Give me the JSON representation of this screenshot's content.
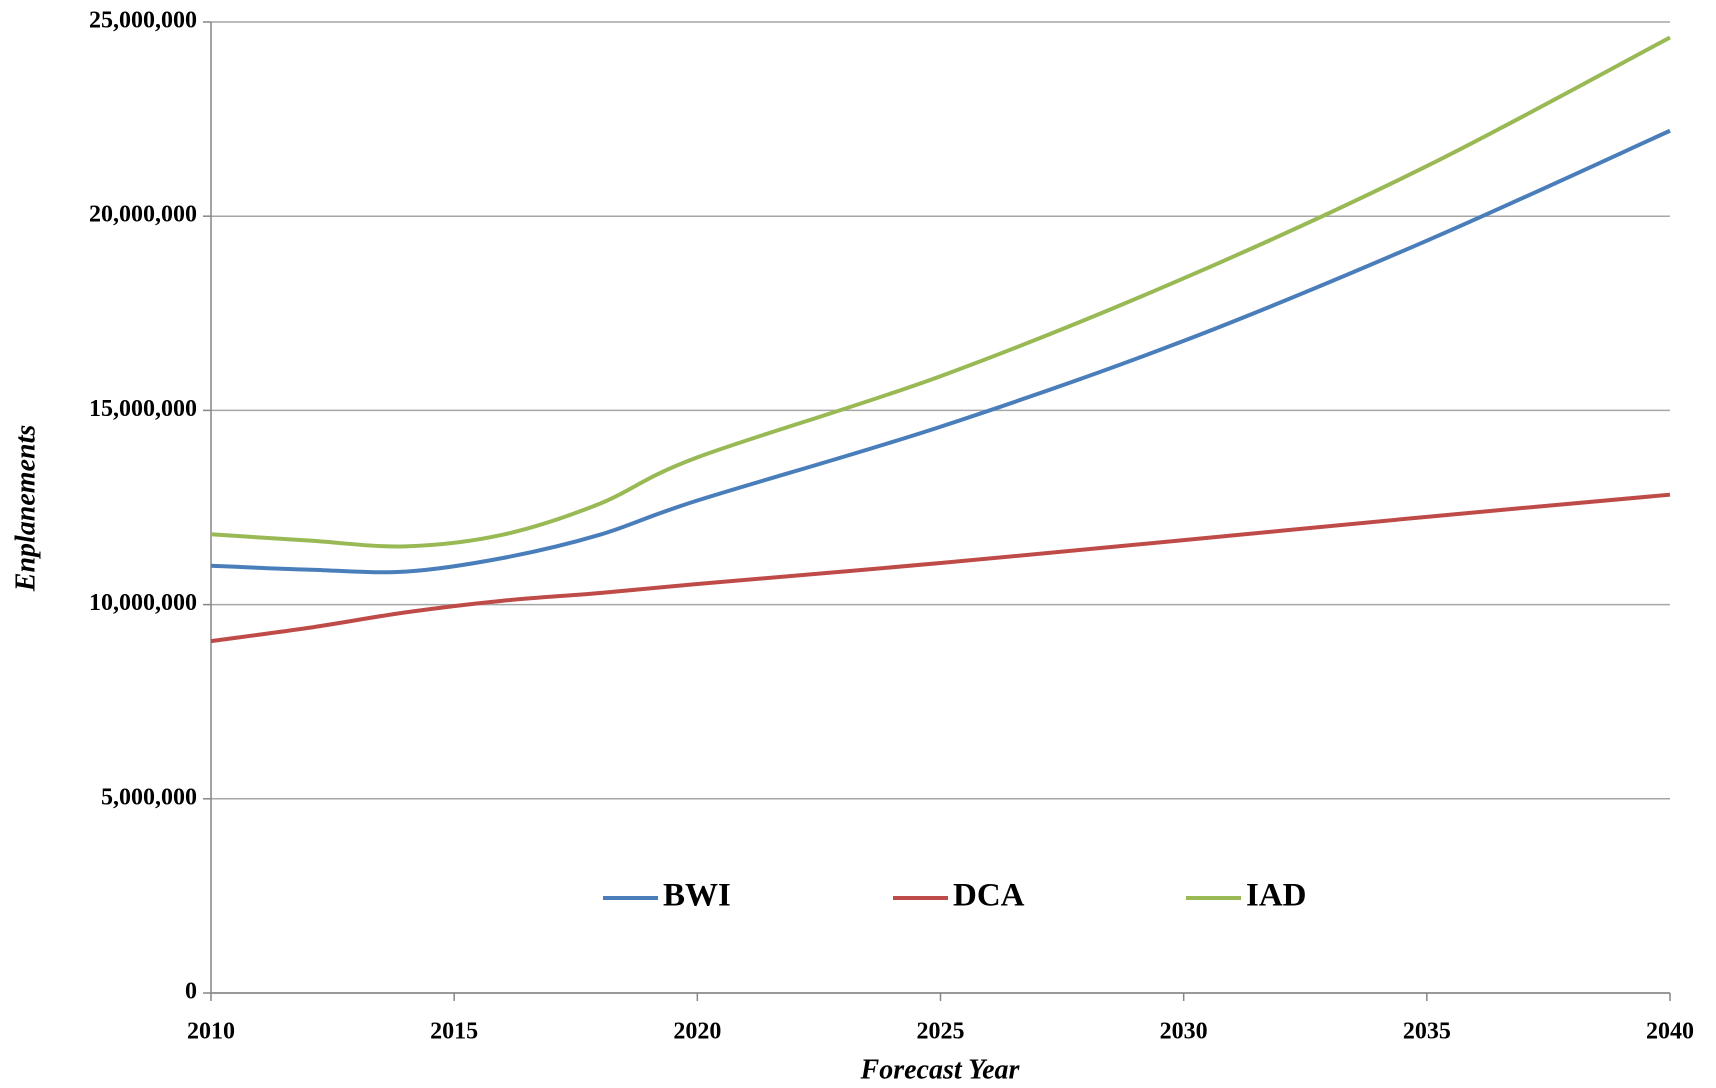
{
  "chart_data": {
    "type": "line",
    "x_label": "Forecast Year",
    "y_label": "Enplanements",
    "x": [
      2010,
      2012,
      2014,
      2016,
      2018,
      2020,
      2025,
      2030,
      2035,
      2040
    ],
    "series": [
      {
        "name": "BWI",
        "color": "#4a7ebb",
        "values": [
          11000000,
          10900000,
          10850000,
          11200000,
          11800000,
          12680000,
          14580000,
          16790000,
          19370000,
          22200000
        ]
      },
      {
        "name": "DCA",
        "color": "#be4b48",
        "values": [
          9060000,
          9400000,
          9800000,
          10100000,
          10300000,
          10530000,
          11070000,
          11660000,
          12260000,
          12830000
        ]
      },
      {
        "name": "IAD",
        "color": "#98b954",
        "values": [
          11810000,
          11650000,
          11500000,
          11800000,
          12600000,
          13790000,
          15880000,
          18400000,
          21290000,
          24600000
        ]
      }
    ],
    "xlim": [
      2010,
      2040
    ],
    "xticks": [
      2010,
      2015,
      2020,
      2025,
      2030,
      2035,
      2040
    ],
    "ylim": [
      0,
      25000000
    ],
    "yticks": [
      0,
      {
        "value": 5000000,
        "label": "5,000,000"
      },
      {
        "value": 10000000,
        "label": "10,000,000"
      },
      {
        "value": 15000000,
        "label": "15,000,000"
      },
      {
        "value": 20000000,
        "label": "20,000,000"
      },
      {
        "value": 25000000,
        "label": "25,000,000"
      }
    ],
    "grid": true,
    "legend": "bottom"
  }
}
